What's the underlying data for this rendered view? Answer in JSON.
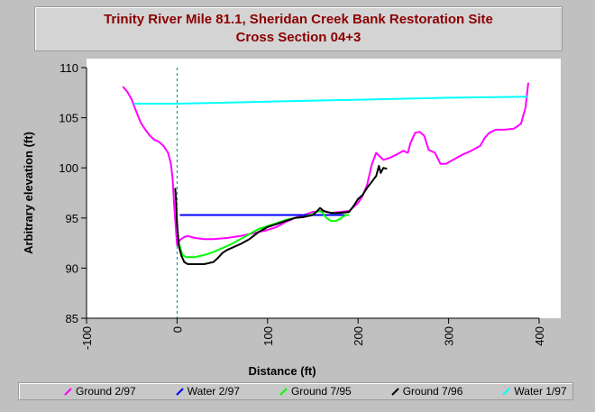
{
  "chart_data": {
    "type": "line",
    "title": "Trinity River Mile 81.1, Sheridan Creek Bank Restoration Site",
    "subtitle": "Cross Section 04+3",
    "xlabel": "Distance (ft)",
    "ylabel": "Arbitrary elevation (ft)",
    "xlim": [
      -100,
      400
    ],
    "ylim": [
      85,
      110
    ],
    "x_ticks": [
      "-100",
      "0",
      "100",
      "200",
      "300",
      "400"
    ],
    "y_ticks": [
      "85",
      "90",
      "95",
      "100",
      "105",
      "110"
    ],
    "grid": false,
    "legend_position": "bottom",
    "reference_line": {
      "x": 0,
      "color": "#008b8b",
      "style": "dashed"
    },
    "series": [
      {
        "name": "Ground 2/97",
        "color": "#ff00ff",
        "points": [
          [
            -60,
            108.1
          ],
          [
            -55,
            107.6
          ],
          [
            -50,
            106.8
          ],
          [
            -45,
            105.6
          ],
          [
            -40,
            104.5
          ],
          [
            -35,
            103.8
          ],
          [
            -30,
            103.2
          ],
          [
            -25,
            102.8
          ],
          [
            -20,
            102.6
          ],
          [
            -15,
            102.2
          ],
          [
            -10,
            101.5
          ],
          [
            -7,
            100.5
          ],
          [
            -5,
            99
          ],
          [
            -3,
            96
          ],
          [
            0,
            92.3
          ],
          [
            3,
            92.8
          ],
          [
            8,
            93.1
          ],
          [
            12,
            93.2
          ],
          [
            20,
            93
          ],
          [
            30,
            92.9
          ],
          [
            40,
            92.9
          ],
          [
            55,
            93
          ],
          [
            70,
            93.2
          ],
          [
            80,
            93.4
          ],
          [
            90,
            93.6
          ],
          [
            100,
            93.8
          ],
          [
            110,
            94.1
          ],
          [
            120,
            94.6
          ],
          [
            130,
            95
          ],
          [
            140,
            95.3
          ],
          [
            150,
            95.6
          ],
          [
            160,
            95.7
          ],
          [
            170,
            95.5
          ],
          [
            180,
            95.6
          ],
          [
            190,
            95.7
          ],
          [
            200,
            96.5
          ],
          [
            205,
            97.2
          ],
          [
            210,
            98.3
          ],
          [
            215,
            100.3
          ],
          [
            220,
            101.5
          ],
          [
            228,
            100.8
          ],
          [
            235,
            101
          ],
          [
            242,
            101.3
          ],
          [
            250,
            101.7
          ],
          [
            255,
            101.5
          ],
          [
            258,
            102.5
          ],
          [
            263,
            103.5
          ],
          [
            268,
            103.6
          ],
          [
            273,
            103.2
          ],
          [
            278,
            101.8
          ],
          [
            285,
            101.5
          ],
          [
            291,
            100.4
          ],
          [
            297,
            100.4
          ],
          [
            305,
            100.8
          ],
          [
            315,
            101.3
          ],
          [
            325,
            101.7
          ],
          [
            335,
            102.2
          ],
          [
            340,
            103
          ],
          [
            345,
            103.5
          ],
          [
            352,
            103.8
          ],
          [
            362,
            103.8
          ],
          [
            372,
            103.9
          ],
          [
            380,
            104.4
          ],
          [
            385,
            106
          ],
          [
            388,
            108.5
          ]
        ]
      },
      {
        "name": "Water 2/97",
        "color": "#0000ff",
        "points": [
          [
            3,
            95.3
          ],
          [
            190,
            95.3
          ]
        ]
      },
      {
        "name": "Ground 7/95",
        "color": "#00ff00",
        "points": [
          [
            2,
            92.5
          ],
          [
            6,
            91.3
          ],
          [
            10,
            91.1
          ],
          [
            20,
            91.1
          ],
          [
            30,
            91.3
          ],
          [
            40,
            91.6
          ],
          [
            50,
            92
          ],
          [
            60,
            92.4
          ],
          [
            70,
            92.9
          ],
          [
            80,
            93.4
          ],
          [
            90,
            93.9
          ],
          [
            100,
            94.2
          ],
          [
            110,
            94.5
          ],
          [
            120,
            94.8
          ],
          [
            130,
            95
          ],
          [
            140,
            95.1
          ],
          [
            150,
            95.4
          ],
          [
            155,
            95.7
          ],
          [
            160,
            95.6
          ],
          [
            165,
            95
          ],
          [
            170,
            94.7
          ],
          [
            175,
            94.7
          ],
          [
            180,
            94.9
          ],
          [
            186,
            95.3
          ],
          [
            190,
            95.3
          ]
        ]
      },
      {
        "name": "Ground 7/96",
        "color": "#000000",
        "points": [
          [
            -2,
            98
          ],
          [
            -1,
            96.5
          ],
          [
            0,
            94.5
          ],
          [
            2,
            92.2
          ],
          [
            5,
            91.2
          ],
          [
            8,
            90.6
          ],
          [
            12,
            90.4
          ],
          [
            20,
            90.4
          ],
          [
            30,
            90.4
          ],
          [
            40,
            90.6
          ],
          [
            45,
            91
          ],
          [
            50,
            91.5
          ],
          [
            55,
            91.8
          ],
          [
            60,
            92
          ],
          [
            70,
            92.4
          ],
          [
            80,
            92.9
          ],
          [
            90,
            93.6
          ],
          [
            100,
            94.1
          ],
          [
            110,
            94.4
          ],
          [
            120,
            94.7
          ],
          [
            130,
            95
          ],
          [
            140,
            95.1
          ],
          [
            150,
            95.3
          ],
          [
            155,
            95.7
          ],
          [
            158,
            96
          ],
          [
            162,
            95.7
          ],
          [
            170,
            95.5
          ],
          [
            180,
            95.5
          ],
          [
            190,
            95.6
          ],
          [
            195,
            96.2
          ],
          [
            200,
            96.9
          ],
          [
            205,
            97.3
          ],
          [
            210,
            98
          ],
          [
            215,
            98.6
          ],
          [
            220,
            99.2
          ],
          [
            223,
            100.2
          ],
          [
            225,
            99.5
          ],
          [
            228,
            100
          ],
          [
            232,
            99.9
          ]
        ]
      },
      {
        "name": "Water 1/97",
        "color": "#00ffff",
        "points": [
          [
            -48,
            106.4
          ],
          [
            0,
            106.4
          ],
          [
            100,
            106.6
          ],
          [
            200,
            106.8
          ],
          [
            300,
            107
          ],
          [
            388,
            107.1
          ]
        ]
      }
    ]
  }
}
